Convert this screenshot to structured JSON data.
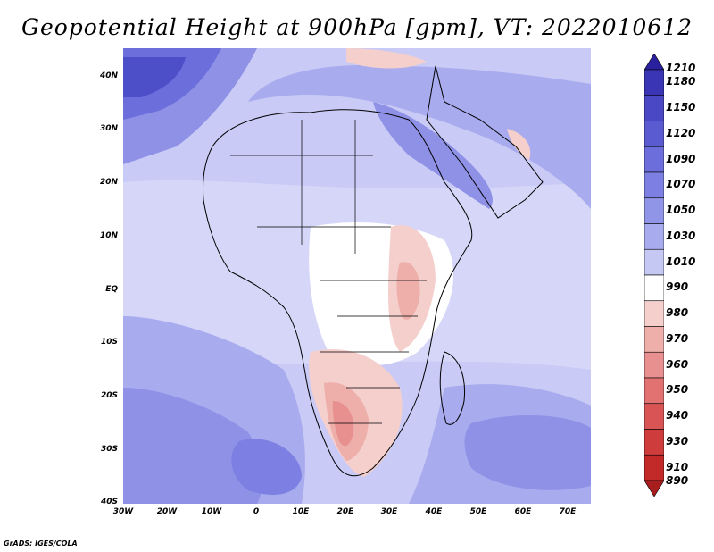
{
  "title": "Geopotential Height at 900hPa [gpm], VT: 2022010612",
  "credit": "GrADS: IGES/COLA",
  "y_axis_labels": [
    "40N",
    "30N",
    "20N",
    "10N",
    "EQ",
    "10S",
    "20S",
    "30S",
    "40S"
  ],
  "x_axis_labels": [
    "30W",
    "20W",
    "10W",
    "0",
    "10E",
    "20E",
    "30E",
    "40E",
    "50E",
    "60E",
    "70E"
  ],
  "colorbar": {
    "labels": [
      "1210",
      "1180",
      "1150",
      "1120",
      "1090",
      "1070",
      "1050",
      "1030",
      "1010",
      "990",
      "980",
      "970",
      "960",
      "950",
      "940",
      "930",
      "910",
      "890"
    ],
    "colors": [
      "#2a1f9c",
      "#3a35b4",
      "#4a48c4",
      "#5a5bd0",
      "#6b6edb",
      "#7d80e2",
      "#9195e8",
      "#a8abee",
      "#c6c8f4",
      "#ffffff",
      "#f4cfcc",
      "#eeaeaa",
      "#e89090",
      "#e27272",
      "#d95555",
      "#cf3c3c",
      "#c22a2a",
      "#a81d1d"
    ]
  }
}
